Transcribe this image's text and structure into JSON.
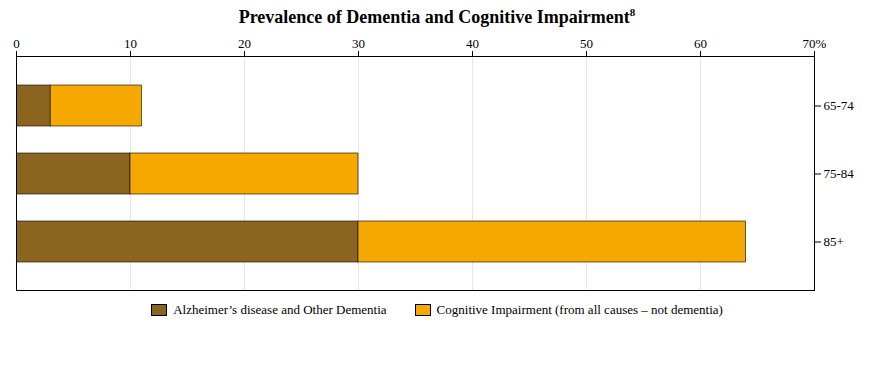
{
  "chart_data": {
    "type": "bar",
    "orientation": "horizontal",
    "stacked": true,
    "title": "Prevalence of Dementia and Cognitive Impairment",
    "annotations": [
      "8"
    ],
    "categories": [
      "65-74",
      "75-84",
      "85+"
    ],
    "series": [
      {
        "name": "Alzheimer’s disease and Other Dementia",
        "color": "#8B6420",
        "values": [
          3,
          10,
          30
        ]
      },
      {
        "name": "Cognitive Impairment (from all causes – not dementia)",
        "color": "#F5A800",
        "values": [
          8,
          20,
          34
        ]
      }
    ],
    "xlim": [
      0,
      70
    ],
    "xticks": [
      0,
      10,
      20,
      30,
      40,
      50,
      60,
      {
        "value": 70,
        "label": "70%"
      }
    ],
    "grid": true,
    "legend": "bottom"
  }
}
